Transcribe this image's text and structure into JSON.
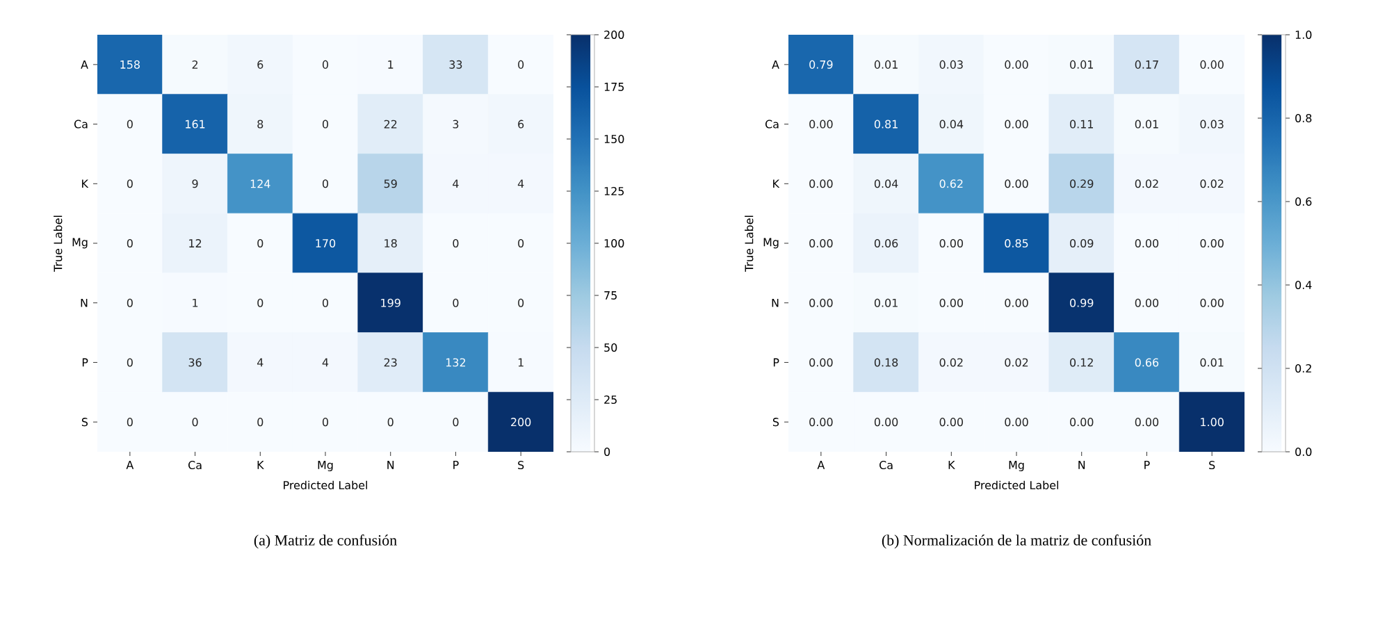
{
  "chart_data": [
    {
      "type": "heatmap",
      "title": "(a)  Matriz de confusión",
      "xlabel": "Predicted Label",
      "ylabel": "True Label",
      "categories": [
        "A",
        "Ca",
        "K",
        "Mg",
        "N",
        "P",
        "S"
      ],
      "y_categories": [
        "A",
        "Ca",
        "K",
        "Mg",
        "N",
        "P",
        "S"
      ],
      "cells": [
        [
          158,
          2,
          6,
          0,
          1,
          33,
          0
        ],
        [
          0,
          161,
          8,
          0,
          22,
          3,
          6
        ],
        [
          0,
          9,
          124,
          0,
          59,
          4,
          4
        ],
        [
          0,
          12,
          0,
          170,
          18,
          0,
          0
        ],
        [
          0,
          1,
          0,
          0,
          199,
          0,
          0
        ],
        [
          0,
          36,
          4,
          4,
          23,
          132,
          1
        ],
        [
          0,
          0,
          0,
          0,
          0,
          0,
          200
        ]
      ],
      "data_labels": true,
      "clim": [
        0,
        200
      ],
      "cticks": [
        0,
        25,
        50,
        75,
        100,
        125,
        150,
        175,
        200
      ]
    },
    {
      "type": "heatmap",
      "title": "(b)  Normalización de la matriz de confusión",
      "xlabel": "Predicted Label",
      "ylabel": "True Label",
      "categories": [
        "A",
        "Ca",
        "K",
        "Mg",
        "N",
        "P",
        "S"
      ],
      "y_categories": [
        "A",
        "Ca",
        "K",
        "Mg",
        "N",
        "P",
        "S"
      ],
      "cells": [
        [
          0.79,
          0.01,
          0.03,
          0.0,
          0.01,
          0.17,
          0.0
        ],
        [
          0.0,
          0.81,
          0.04,
          0.0,
          0.11,
          0.01,
          0.03
        ],
        [
          0.0,
          0.04,
          0.62,
          0.0,
          0.29,
          0.02,
          0.02
        ],
        [
          0.0,
          0.06,
          0.0,
          0.85,
          0.09,
          0.0,
          0.0
        ],
        [
          0.0,
          0.01,
          0.0,
          0.0,
          0.99,
          0.0,
          0.0
        ],
        [
          0.0,
          0.18,
          0.02,
          0.02,
          0.12,
          0.66,
          0.01
        ],
        [
          0.0,
          0.0,
          0.0,
          0.0,
          0.0,
          0.0,
          1.0
        ]
      ],
      "cell_labels": [
        [
          "0.79",
          "0.01",
          "0.03",
          "0.00",
          "0.01",
          "0.17",
          "0.00"
        ],
        [
          "0.00",
          "0.81",
          "0.04",
          "0.00",
          "0.11",
          "0.01",
          "0.03"
        ],
        [
          "0.00",
          "0.04",
          "0.62",
          "0.00",
          "0.29",
          "0.02",
          "0.02"
        ],
        [
          "0.00",
          "0.06",
          "0.00",
          "0.85",
          "0.09",
          "0.00",
          "0.00"
        ],
        [
          "0.00",
          "0.01",
          "0.00",
          "0.00",
          "0.99",
          "0.00",
          "0.00"
        ],
        [
          "0.00",
          "0.18",
          "0.02",
          "0.02",
          "0.12",
          "0.66",
          "0.01"
        ],
        [
          "0.00",
          "0.00",
          "0.00",
          "0.00",
          "0.00",
          "0.00",
          "1.00"
        ]
      ],
      "clim": [
        0,
        1
      ],
      "cticks": [
        {
          "value": 0,
          "label": "0.0"
        },
        {
          "value": 0.2,
          "label": "0.2"
        },
        {
          "value": 0.4,
          "label": "0.4"
        },
        {
          "value": 0.6,
          "label": "0.6"
        },
        {
          "value": 0.8,
          "label": "0.8"
        },
        {
          "value": 1.0,
          "label": "1.0"
        }
      ]
    }
  ]
}
